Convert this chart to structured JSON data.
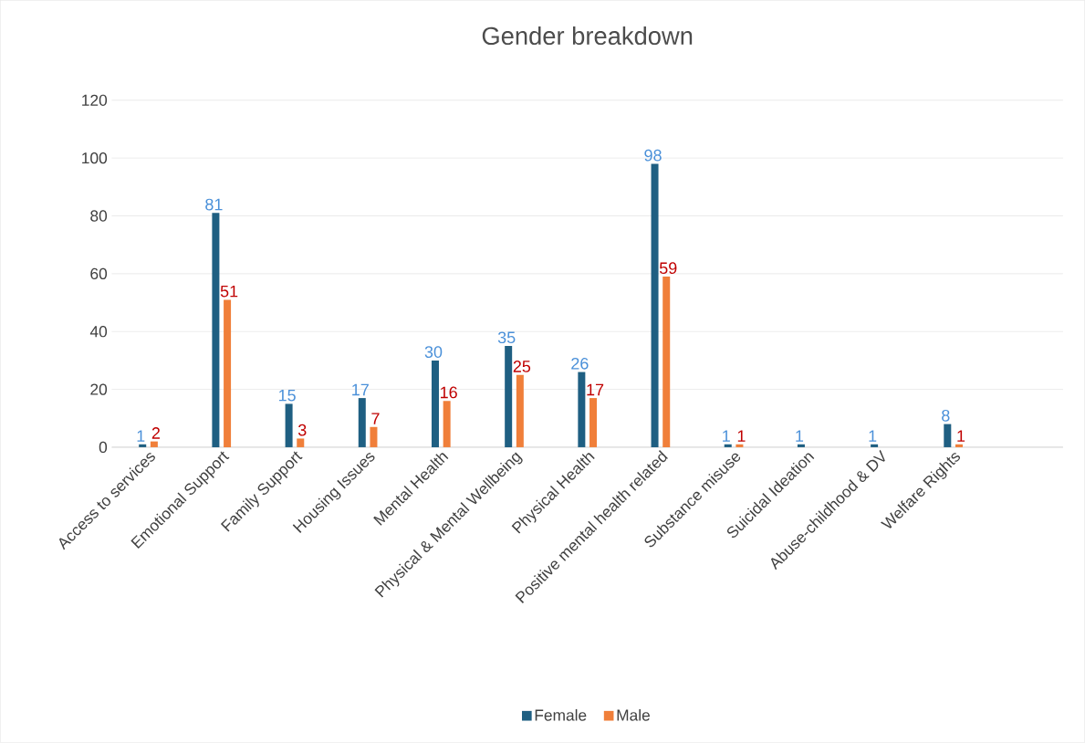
{
  "chart_data": {
    "type": "bar",
    "title": "Gender breakdown",
    "categories": [
      "Access to services",
      "Emotional Support",
      "Family Support",
      "Housing Issues",
      "Mental Health",
      "Physical & Mental Wellbeing",
      "Physical Health",
      "Positive mental health related",
      "Substance misuse",
      "Suicidal Ideation",
      "Abuse-childhood & DV",
      "Welfare Rights",
      null
    ],
    "series": [
      {
        "name": "Female",
        "color": "#1f5f82",
        "values": [
          1,
          81,
          15,
          17,
          30,
          35,
          26,
          98,
          1,
          1,
          1,
          8,
          null
        ]
      },
      {
        "name": "Male",
        "color": "#f07f3a",
        "values": [
          2,
          51,
          3,
          7,
          16,
          25,
          17,
          59,
          1,
          null,
          null,
          1,
          null
        ]
      }
    ],
    "ylim": [
      0,
      120
    ],
    "yticks": [
      0,
      20,
      40,
      60,
      80,
      100,
      120
    ],
    "grid": "y",
    "legend": "bottom",
    "data_labels": true
  }
}
